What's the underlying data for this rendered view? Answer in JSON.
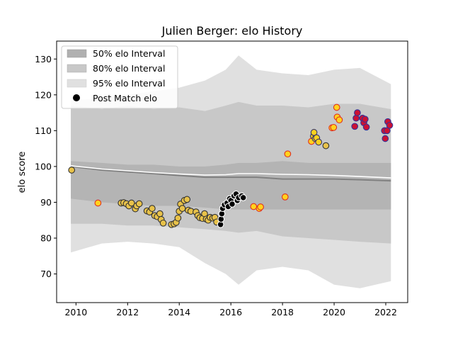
{
  "chart_data": {
    "type": "scatter",
    "title": "Julien Berger: elo History",
    "xlabel": "",
    "ylabel": "elo score",
    "xlim": [
      2009.25,
      2022.85
    ],
    "ylim": [
      62,
      135
    ],
    "x_ticks": [
      "2010",
      "2012",
      "2014",
      "2016",
      "2018",
      "2020",
      "2022"
    ],
    "y_ticks": [
      "70",
      "80",
      "90",
      "100",
      "110",
      "120",
      "130"
    ],
    "grid": false,
    "legend_position": "top-left",
    "legend": [
      {
        "label": "50% elo Interval",
        "color": "#b0b0b0",
        "kind": "band"
      },
      {
        "label": "80% elo Interval",
        "color": "#c8c8c8",
        "kind": "band"
      },
      {
        "label": "95% elo Interval",
        "color": "#e0e0e0",
        "kind": "band"
      },
      {
        "label": "Post Match elo",
        "color": "#000000",
        "kind": "marker"
      }
    ],
    "bands": {
      "x": [
        2009.8,
        2011.0,
        2012.0,
        2013.0,
        2014.0,
        2015.0,
        2015.8,
        2016.3,
        2017.0,
        2018.0,
        2019.0,
        2020.0,
        2021.0,
        2022.2
      ],
      "i95_upper": [
        118.5,
        119.0,
        120.0,
        121.0,
        122.0,
        124.0,
        127.0,
        131.0,
        127.0,
        126.0,
        125.5,
        127.0,
        127.5,
        123.0
      ],
      "i95_lower": [
        76.0,
        78.5,
        79.0,
        78.5,
        77.5,
        73.0,
        70.0,
        67.0,
        71.0,
        72.0,
        71.0,
        67.0,
        66.0,
        68.0
      ],
      "i80_upper": [
        117.0,
        116.0,
        117.0,
        116.0,
        116.5,
        115.5,
        117.0,
        118.0,
        117.0,
        117.0,
        116.5,
        117.5,
        117.5,
        116.0
      ],
      "i80_lower": [
        84.0,
        84.0,
        83.5,
        83.5,
        83.0,
        82.5,
        82.0,
        81.5,
        82.0,
        80.5,
        80.0,
        79.5,
        79.0,
        78.5
      ],
      "i50_upper": [
        101.5,
        101.0,
        100.5,
        100.5,
        100.0,
        100.0,
        100.5,
        101.0,
        101.0,
        101.5,
        101.0,
        101.0,
        101.0,
        101.0
      ],
      "i50_lower": [
        91.0,
        90.0,
        89.5,
        89.0,
        89.0,
        88.5,
        88.0,
        88.0,
        88.0,
        88.0,
        88.0,
        88.0,
        88.0,
        88.0
      ],
      "mean_grey": [
        100.0,
        99.0,
        98.5,
        98.0,
        97.5,
        97.0,
        97.0,
        97.0,
        97.0,
        96.5,
        96.5,
        96.5,
        96.3,
        96.0
      ],
      "mean_white": [
        100.2,
        99.3,
        98.8,
        98.3,
        97.9,
        97.6,
        97.7,
        98.0,
        98.0,
        97.8,
        97.7,
        97.5,
        97.2,
        96.8
      ]
    },
    "points": [
      {
        "x": 2009.83,
        "y": 99.0,
        "fill": "#e8c24a",
        "edge": "#333333"
      },
      {
        "x": 2010.85,
        "y": 89.8,
        "fill": "#ffd21e",
        "edge": "#e03020"
      },
      {
        "x": 2011.75,
        "y": 89.8,
        "fill": "#e8c24a",
        "edge": "#333333"
      },
      {
        "x": 2011.85,
        "y": 89.9,
        "fill": "#e8c24a",
        "edge": "#333333"
      },
      {
        "x": 2011.95,
        "y": 89.6,
        "fill": "#e8c24a",
        "edge": "#333333"
      },
      {
        "x": 2012.05,
        "y": 89.0,
        "fill": "#e8c24a",
        "edge": "#333333"
      },
      {
        "x": 2012.15,
        "y": 89.8,
        "fill": "#e8c24a",
        "edge": "#333333"
      },
      {
        "x": 2012.3,
        "y": 88.2,
        "fill": "#e8c24a",
        "edge": "#333333"
      },
      {
        "x": 2012.35,
        "y": 89.0,
        "fill": "#e8c24a",
        "edge": "#333333"
      },
      {
        "x": 2012.45,
        "y": 89.6,
        "fill": "#e8c24a",
        "edge": "#333333"
      },
      {
        "x": 2012.75,
        "y": 87.6,
        "fill": "#e8c24a",
        "edge": "#333333"
      },
      {
        "x": 2012.85,
        "y": 87.3,
        "fill": "#e8c24a",
        "edge": "#333333"
      },
      {
        "x": 2012.95,
        "y": 88.3,
        "fill": "#e8c24a",
        "edge": "#333333"
      },
      {
        "x": 2013.05,
        "y": 86.3,
        "fill": "#e8c24a",
        "edge": "#333333"
      },
      {
        "x": 2013.15,
        "y": 86.0,
        "fill": "#e8c24a",
        "edge": "#333333"
      },
      {
        "x": 2013.25,
        "y": 86.8,
        "fill": "#e8c24a",
        "edge": "#333333"
      },
      {
        "x": 2013.3,
        "y": 85.2,
        "fill": "#e8c24a",
        "edge": "#333333"
      },
      {
        "x": 2013.38,
        "y": 84.2,
        "fill": "#e8c24a",
        "edge": "#333333"
      },
      {
        "x": 2013.7,
        "y": 83.8,
        "fill": "#e8c24a",
        "edge": "#333333"
      },
      {
        "x": 2013.8,
        "y": 84.0,
        "fill": "#e8c24a",
        "edge": "#333333"
      },
      {
        "x": 2013.88,
        "y": 84.4,
        "fill": "#e8c24a",
        "edge": "#333333"
      },
      {
        "x": 2013.95,
        "y": 85.6,
        "fill": "#e8c24a",
        "edge": "#333333"
      },
      {
        "x": 2014.0,
        "y": 87.5,
        "fill": "#e8c24a",
        "edge": "#333333"
      },
      {
        "x": 2014.05,
        "y": 89.5,
        "fill": "#e8c24a",
        "edge": "#333333"
      },
      {
        "x": 2014.12,
        "y": 88.3,
        "fill": "#e8c24a",
        "edge": "#333333"
      },
      {
        "x": 2014.2,
        "y": 90.5,
        "fill": "#e8c24a",
        "edge": "#333333"
      },
      {
        "x": 2014.3,
        "y": 90.8,
        "fill": "#e8c24a",
        "edge": "#333333"
      },
      {
        "x": 2014.35,
        "y": 87.8,
        "fill": "#e8c24a",
        "edge": "#333333"
      },
      {
        "x": 2014.45,
        "y": 87.5,
        "fill": "#e8c24a",
        "edge": "#333333"
      },
      {
        "x": 2014.65,
        "y": 87.3,
        "fill": "#e8c24a",
        "edge": "#333333"
      },
      {
        "x": 2014.72,
        "y": 86.3,
        "fill": "#e8c24a",
        "edge": "#333333"
      },
      {
        "x": 2014.8,
        "y": 85.7,
        "fill": "#e8c24a",
        "edge": "#333333"
      },
      {
        "x": 2014.9,
        "y": 85.5,
        "fill": "#e8c24a",
        "edge": "#333333"
      },
      {
        "x": 2014.98,
        "y": 86.8,
        "fill": "#e8c24a",
        "edge": "#333333"
      },
      {
        "x": 2015.05,
        "y": 85.3,
        "fill": "#e8c24a",
        "edge": "#333333"
      },
      {
        "x": 2015.12,
        "y": 85.0,
        "fill": "#e8c24a",
        "edge": "#333333"
      },
      {
        "x": 2015.2,
        "y": 85.8,
        "fill": "#e8c24a",
        "edge": "#333333"
      },
      {
        "x": 2015.3,
        "y": 85.6,
        "fill": "#e8c24a",
        "edge": "#333333"
      },
      {
        "x": 2015.38,
        "y": 85.8,
        "fill": "#e8c24a",
        "edge": "#333333"
      },
      {
        "x": 2015.45,
        "y": 84.5,
        "fill": "#e8c24a",
        "edge": "#333333"
      },
      {
        "x": 2015.6,
        "y": 83.8,
        "fill": "#000000",
        "edge": "#ffffff"
      },
      {
        "x": 2015.62,
        "y": 85.3,
        "fill": "#000000",
        "edge": "#ffffff"
      },
      {
        "x": 2015.65,
        "y": 86.8,
        "fill": "#000000",
        "edge": "#ffffff"
      },
      {
        "x": 2015.68,
        "y": 88.3,
        "fill": "#000000",
        "edge": "#ffffff"
      },
      {
        "x": 2015.75,
        "y": 89.3,
        "fill": "#000000",
        "edge": "#ffffff"
      },
      {
        "x": 2015.85,
        "y": 89.8,
        "fill": "#000000",
        "edge": "#ffffff"
      },
      {
        "x": 2015.9,
        "y": 88.8,
        "fill": "#000000",
        "edge": "#ffffff"
      },
      {
        "x": 2015.95,
        "y": 91.0,
        "fill": "#000000",
        "edge": "#ffffff"
      },
      {
        "x": 2016.0,
        "y": 90.5,
        "fill": "#000000",
        "edge": "#ffffff"
      },
      {
        "x": 2016.05,
        "y": 89.5,
        "fill": "#000000",
        "edge": "#ffffff"
      },
      {
        "x": 2016.12,
        "y": 91.8,
        "fill": "#000000",
        "edge": "#ffffff"
      },
      {
        "x": 2016.2,
        "y": 92.3,
        "fill": "#000000",
        "edge": "#ffffff"
      },
      {
        "x": 2016.25,
        "y": 90.5,
        "fill": "#000000",
        "edge": "#ffffff"
      },
      {
        "x": 2016.3,
        "y": 91.3,
        "fill": "#000000",
        "edge": "#ffffff"
      },
      {
        "x": 2016.42,
        "y": 91.8,
        "fill": "#000000",
        "edge": "#ffffff"
      },
      {
        "x": 2016.48,
        "y": 91.3,
        "fill": "#000000",
        "edge": "#ffffff"
      },
      {
        "x": 2016.88,
        "y": 88.8,
        "fill": "#ffd21e",
        "edge": "#e03020"
      },
      {
        "x": 2017.1,
        "y": 88.3,
        "fill": "#ffd21e",
        "edge": "#e03020"
      },
      {
        "x": 2017.15,
        "y": 88.7,
        "fill": "#ffd21e",
        "edge": "#e03020"
      },
      {
        "x": 2018.1,
        "y": 91.5,
        "fill": "#ffd21e",
        "edge": "#e03020"
      },
      {
        "x": 2018.2,
        "y": 103.5,
        "fill": "#ffd21e",
        "edge": "#e03020"
      },
      {
        "x": 2019.12,
        "y": 107.0,
        "fill": "#ffd21e",
        "edge": "#e03020"
      },
      {
        "x": 2019.2,
        "y": 108.5,
        "fill": "#ffd21e",
        "edge": "#333366"
      },
      {
        "x": 2019.22,
        "y": 109.5,
        "fill": "#ffd21e",
        "edge": "#333366"
      },
      {
        "x": 2019.27,
        "y": 107.8,
        "fill": "#ffd21e",
        "edge": "#333366"
      },
      {
        "x": 2019.32,
        "y": 108.0,
        "fill": "#ffd21e",
        "edge": "#333366"
      },
      {
        "x": 2019.4,
        "y": 106.8,
        "fill": "#ffd21e",
        "edge": "#333366"
      },
      {
        "x": 2019.68,
        "y": 105.8,
        "fill": "#e8c24a",
        "edge": "#333333"
      },
      {
        "x": 2019.92,
        "y": 110.8,
        "fill": "#ffd21e",
        "edge": "#e03020"
      },
      {
        "x": 2019.98,
        "y": 110.9,
        "fill": "#ffd21e",
        "edge": "#e03020"
      },
      {
        "x": 2020.1,
        "y": 116.5,
        "fill": "#ffd21e",
        "edge": "#e03020"
      },
      {
        "x": 2020.12,
        "y": 113.8,
        "fill": "#ffd21e",
        "edge": "#e03020"
      },
      {
        "x": 2020.2,
        "y": 113.0,
        "fill": "#ffd21e",
        "edge": "#e03020"
      },
      {
        "x": 2020.8,
        "y": 111.2,
        "fill": "#cc1133",
        "edge": "#333399"
      },
      {
        "x": 2020.85,
        "y": 113.5,
        "fill": "#cc1133",
        "edge": "#333399"
      },
      {
        "x": 2020.9,
        "y": 115.0,
        "fill": "#cc1133",
        "edge": "#333399"
      },
      {
        "x": 2021.1,
        "y": 113.5,
        "fill": "#cc1133",
        "edge": "#333399"
      },
      {
        "x": 2021.15,
        "y": 112.2,
        "fill": "#cc1133",
        "edge": "#333399"
      },
      {
        "x": 2021.2,
        "y": 113.2,
        "fill": "#cc1133",
        "edge": "#333399"
      },
      {
        "x": 2021.25,
        "y": 111.0,
        "fill": "#cc1133",
        "edge": "#333399"
      },
      {
        "x": 2021.95,
        "y": 110.0,
        "fill": "#cc1133",
        "edge": "#333399"
      },
      {
        "x": 2021.98,
        "y": 107.8,
        "fill": "#cc1133",
        "edge": "#333399"
      },
      {
        "x": 2022.05,
        "y": 110.0,
        "fill": "#cc1133",
        "edge": "#333399"
      },
      {
        "x": 2022.08,
        "y": 112.5,
        "fill": "#cc1133",
        "edge": "#333399"
      },
      {
        "x": 2022.15,
        "y": 111.5,
        "fill": "#cc1133",
        "edge": "#333399"
      }
    ]
  }
}
